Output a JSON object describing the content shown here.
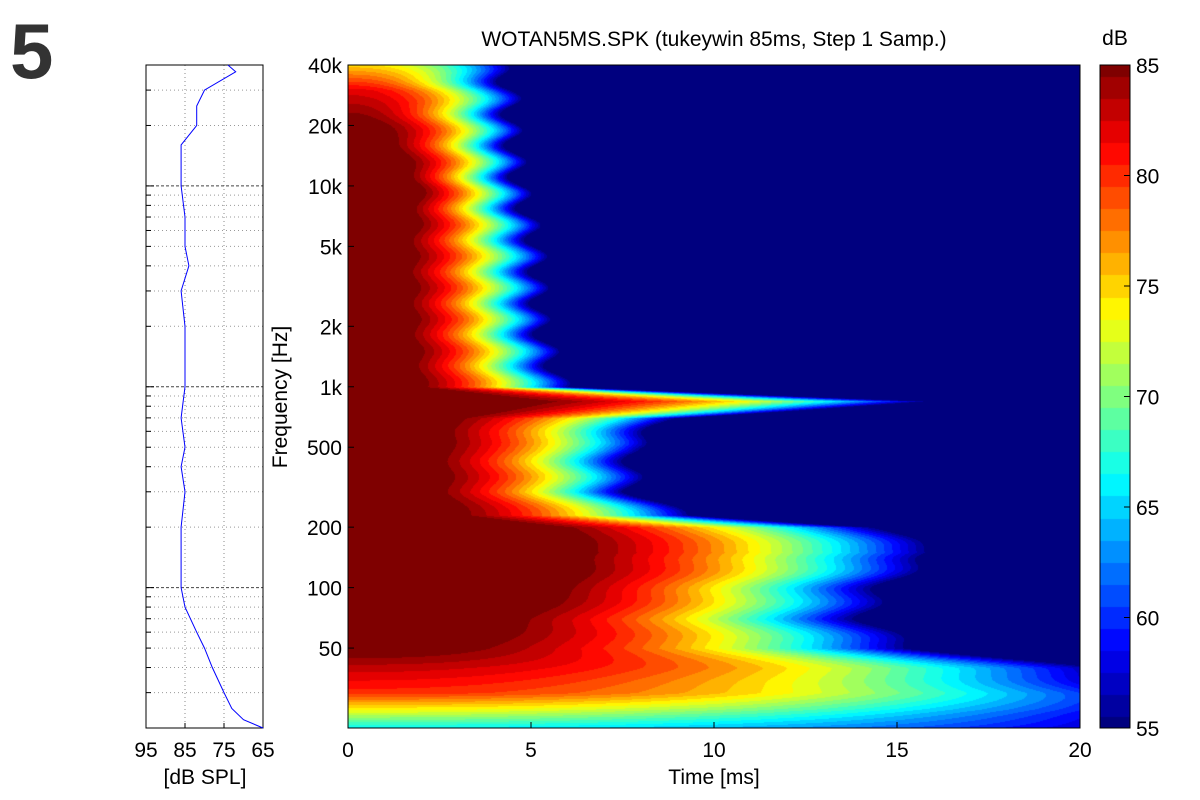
{
  "panel_label": "5",
  "chart_data": [
    {
      "type": "heatmap",
      "title": "WOTAN5MS.SPK (tukeywin 85ms, Step 1 Samp.)",
      "xlabel": "Time [ms]",
      "ylabel": "Frequency [Hz]",
      "xlim": [
        0,
        20
      ],
      "ylim": [
        20,
        40000
      ],
      "yscale": "log",
      "xticks": [
        0,
        5,
        10,
        15,
        20
      ],
      "xtick_labels": [
        "0",
        "5",
        "10",
        "15",
        "20"
      ],
      "yticks": [
        50,
        100,
        200,
        500,
        1000,
        2000,
        5000,
        10000,
        20000,
        40000
      ],
      "ytick_labels": [
        "50",
        "100",
        "200",
        "500",
        "1k",
        "2k",
        "5k",
        "10k",
        "20k",
        "40k"
      ],
      "colorbar": {
        "label": "dB",
        "range": [
          55,
          85
        ],
        "ticks": [
          55,
          60,
          65,
          70,
          75,
          80,
          85
        ],
        "tick_labels": [
          "55",
          "60",
          "65",
          "70",
          "75",
          "80",
          "85"
        ],
        "colormap": "jet"
      },
      "decay_model": {
        "frequency_hz": [
          20,
          25,
          30,
          40,
          50,
          70,
          100,
          150,
          200,
          230,
          300,
          500,
          700,
          850,
          1000,
          2000,
          5000,
          10000,
          20000,
          30000,
          40000
        ],
        "initial_level_db": [
          66,
          74,
          80,
          83,
          86,
          88,
          90,
          90,
          90,
          88,
          88,
          88,
          88,
          88,
          88,
          88,
          88,
          90,
          86,
          82,
          75
        ],
        "decay_end_time_ms": [
          24,
          24,
          23,
          21,
          16,
          14.5,
          15,
          16.5,
          15,
          9.5,
          8,
          8,
          9,
          16.5,
          6,
          5.4,
          5.3,
          4.8,
          4.6,
          4.6,
          4.3
        ]
      }
    },
    {
      "type": "line",
      "xlabel": "[dB SPL]",
      "xlim": [
        95,
        65
      ],
      "xticks": [
        95,
        85,
        75,
        65
      ],
      "xtick_labels": [
        "95",
        "85",
        "75",
        "65"
      ],
      "ylim": [
        20,
        40000
      ],
      "yscale": "log",
      "series": [
        {
          "name": "frequency response",
          "color": "#0000ff",
          "frequency_hz": [
            20,
            22,
            25,
            30,
            40,
            50,
            60,
            80,
            100,
            150,
            200,
            300,
            400,
            500,
            700,
            1000,
            1500,
            2000,
            3000,
            4000,
            5000,
            7000,
            10000,
            13000,
            16000,
            20000,
            25000,
            30000,
            37000,
            40000
          ],
          "level_db": [
            65,
            70,
            73,
            75,
            78,
            80,
            82,
            85,
            86,
            86,
            86,
            85,
            86,
            85,
            86,
            85,
            85,
            85,
            86,
            84,
            85,
            85,
            86,
            86,
            86,
            82,
            82,
            80,
            72,
            74
          ]
        }
      ]
    }
  ]
}
